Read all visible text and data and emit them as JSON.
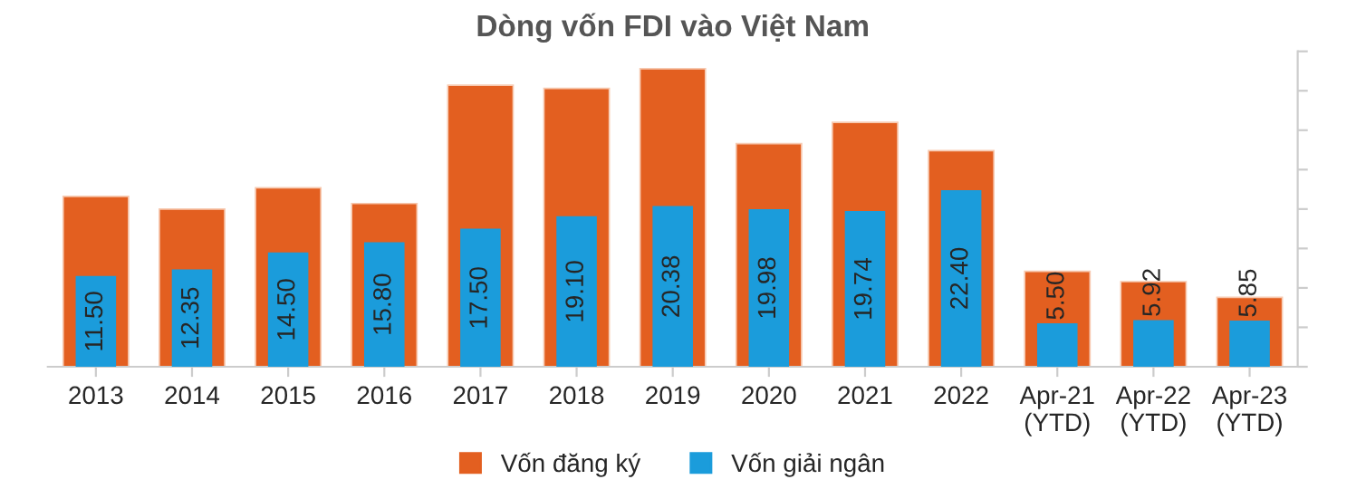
{
  "chart_data": {
    "type": "bar",
    "title": "Dòng vốn FDI vào Việt Nam",
    "categories": [
      "2013",
      "2014",
      "2015",
      "2016",
      "2017",
      "2018",
      "2019",
      "2020",
      "2021",
      "2022",
      "Apr-21\n(YTD)",
      "Apr-22\n(YTD)",
      "Apr-23\n(YTD)"
    ],
    "series": [
      {
        "name": "Vốn đăng ký",
        "color": "#e35f20",
        "values": [
          21.6,
          20.0,
          22.7,
          20.7,
          35.7,
          35.3,
          37.8,
          28.3,
          31.0,
          27.4,
          12.1,
          10.8,
          8.8
        ]
      },
      {
        "name": "Vốn giải ngân",
        "color": "#1b9cdb",
        "values": [
          11.5,
          12.35,
          14.5,
          15.8,
          17.5,
          19.1,
          20.38,
          19.98,
          19.74,
          22.4,
          5.5,
          5.92,
          5.85
        ],
        "value_labels": [
          "11.50",
          "12.35",
          "14.50",
          "15.80",
          "17.50",
          "19.10",
          "20.38",
          "19.98",
          "19.74",
          "22.40",
          "5.50",
          "5.92",
          "5.85"
        ]
      }
    ],
    "ylim": [
      0,
      40
    ],
    "yticks": [
      {
        "value": 0,
        "label": null
      },
      {
        "value": 5,
        "label": null
      },
      {
        "value": 10,
        "label": null
      },
      {
        "value": 15,
        "label": null
      },
      {
        "value": 20,
        "label": null
      },
      {
        "value": 25,
        "label": null
      },
      {
        "value": 30,
        "label": null
      },
      {
        "value": 35,
        "label": null
      },
      {
        "value": 40,
        "label": null
      }
    ],
    "tick_labels": "x",
    "grid": false,
    "legend": "bottom"
  }
}
